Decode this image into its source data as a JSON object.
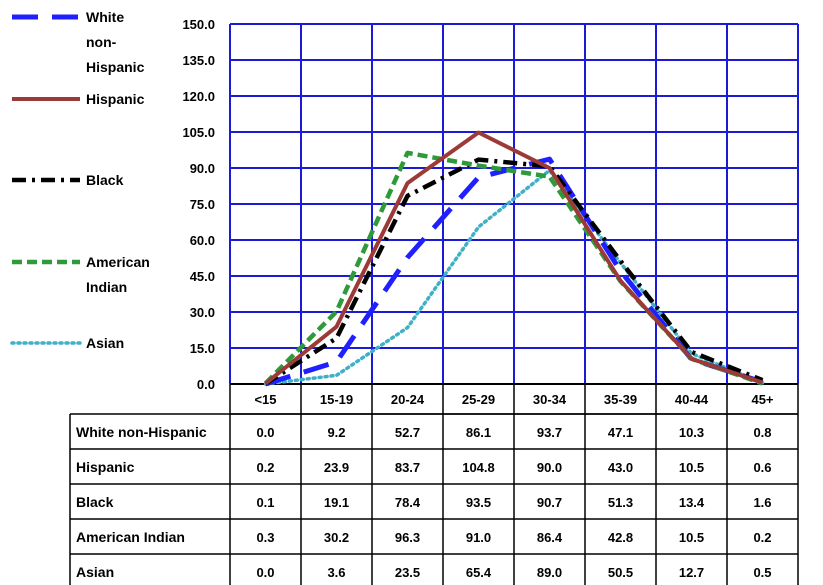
{
  "chart_data": {
    "type": "line",
    "categories": [
      "<15",
      "15-19",
      "20-24",
      "25-29",
      "30-34",
      "35-39",
      "40-44",
      "45+"
    ],
    "ylim": [
      0,
      150
    ],
    "yticks": [
      "0.0",
      "15.0",
      "30.0",
      "45.0",
      "60.0",
      "75.0",
      "90.0",
      "105.0",
      "120.0",
      "135.0",
      "150.0"
    ],
    "grid": true,
    "legend_position": "left",
    "series": [
      {
        "name": "White non-Hispanic",
        "legend_lines": [
          "White",
          "non-",
          "Hispanic"
        ],
        "color": "#1f1fff",
        "style": "long-dash",
        "values": [
          0.0,
          9.2,
          52.7,
          86.1,
          93.7,
          47.1,
          10.3,
          0.8
        ],
        "labels": [
          "0.0",
          "9.2",
          "52.7",
          "86.1",
          "93.7",
          "47.1",
          "10.3",
          "0.8"
        ]
      },
      {
        "name": "Hispanic",
        "legend_lines": [
          "Hispanic"
        ],
        "color": "#9b3a36",
        "style": "solid",
        "values": [
          0.2,
          23.9,
          83.7,
          104.8,
          90.0,
          43.0,
          10.5,
          0.6
        ],
        "labels": [
          "0.2",
          "23.9",
          "83.7",
          "104.8",
          "90.0",
          "43.0",
          "10.5",
          "0.6"
        ]
      },
      {
        "name": "Black",
        "legend_lines": [
          "Black"
        ],
        "color": "#000000",
        "style": "dash-dot",
        "values": [
          0.1,
          19.1,
          78.4,
          93.5,
          90.7,
          51.3,
          13.4,
          1.6
        ],
        "labels": [
          "0.1",
          "19.1",
          "78.4",
          "93.5",
          "90.7",
          "51.3",
          "13.4",
          "1.6"
        ]
      },
      {
        "name": "American Indian",
        "legend_lines": [
          "American",
          "Indian"
        ],
        "color": "#2f9a3a",
        "style": "dash",
        "values": [
          0.3,
          30.2,
          96.3,
          91.0,
          86.4,
          42.8,
          10.5,
          0.2
        ],
        "labels": [
          "0.3",
          "30.2",
          "96.3",
          "91.0",
          "86.4",
          "42.8",
          "10.5",
          "0.2"
        ]
      },
      {
        "name": "Asian",
        "legend_lines": [
          "Asian"
        ],
        "color": "#3fb0c8",
        "style": "dotted",
        "values": [
          0.0,
          3.6,
          23.5,
          65.4,
          89.0,
          50.5,
          12.7,
          0.5
        ],
        "labels": [
          "0.0",
          "3.6",
          "23.5",
          "65.4",
          "89.0",
          "50.5",
          "12.7",
          "0.5"
        ]
      }
    ]
  }
}
